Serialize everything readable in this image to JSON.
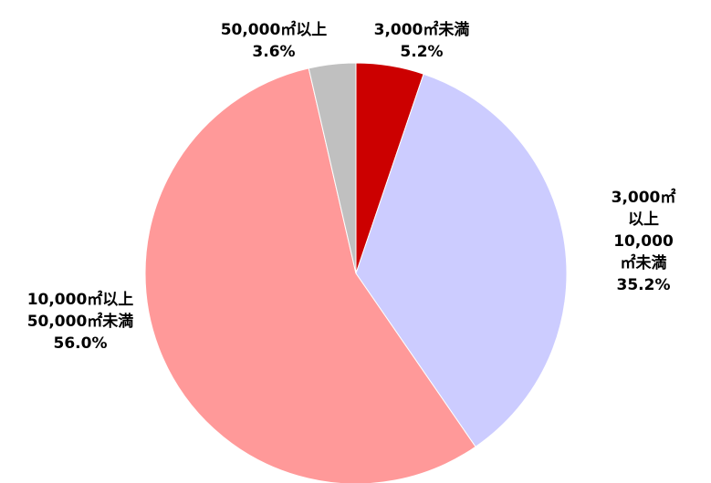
{
  "chart_data": {
    "type": "pie",
    "categories": [
      "3,000㎡未満",
      "3,000㎡以上\n10,000㎡未満",
      "10,000㎡以上\n50,000㎡未満",
      "50,000㎡以上"
    ],
    "values": [
      5.2,
      35.2,
      56.0,
      3.6
    ],
    "value_labels": [
      "5.2%",
      "35.2%",
      "56.0%",
      "3.6%"
    ],
    "colors": [
      "#cc0000",
      "#ccccff",
      "#ff9999",
      "#c0c0c0"
    ]
  }
}
